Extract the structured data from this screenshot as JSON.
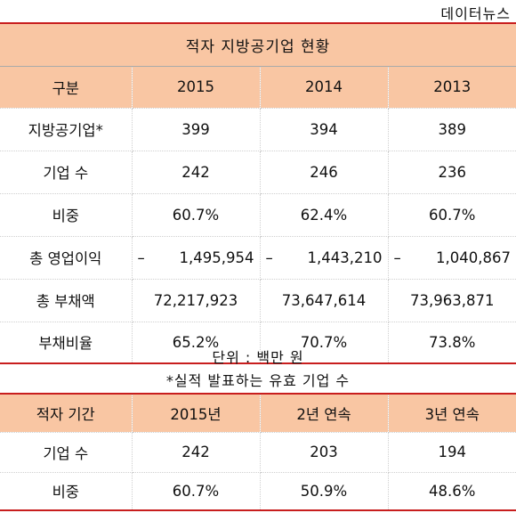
{
  "source": "데이터뉴스",
  "table1": {
    "title": "적자 지방공기업 현황",
    "headers": [
      "구분",
      "2015",
      "2014",
      "2013"
    ],
    "rows": [
      {
        "label": "지방공기업*",
        "values": [
          "399",
          "394",
          "389"
        ]
      },
      {
        "label": "기업 수",
        "values": [
          "242",
          "246",
          "236"
        ]
      },
      {
        "label": "비중",
        "values": [
          "60.7%",
          "62.4%",
          "60.7%"
        ]
      },
      {
        "label": "총 영업이익",
        "sign": "–",
        "values": [
          "1,495,954",
          "1,443,210",
          "1,040,867"
        ]
      },
      {
        "label": "총 부채액",
        "values": [
          "72,217,923",
          "73,647,614",
          "73,963,871"
        ]
      },
      {
        "label": "부채비율",
        "values": [
          "65.2%",
          "70.7%",
          "73.8%"
        ]
      }
    ]
  },
  "notes": {
    "unit": "단위 : 백만 원",
    "footnote": "*실적 발표하는 유효 기업 수"
  },
  "table2": {
    "headers": [
      "적자 기간",
      "2015년",
      "2년 연속",
      "3년 연속"
    ],
    "rows": [
      {
        "label": "기업 수",
        "values": [
          "242",
          "203",
          "194"
        ]
      },
      {
        "label": "비중",
        "values": [
          "60.7%",
          "50.9%",
          "48.6%"
        ]
      }
    ]
  },
  "colors": {
    "header_bg": "#f9c6a3",
    "rule": "#c81e1e"
  }
}
